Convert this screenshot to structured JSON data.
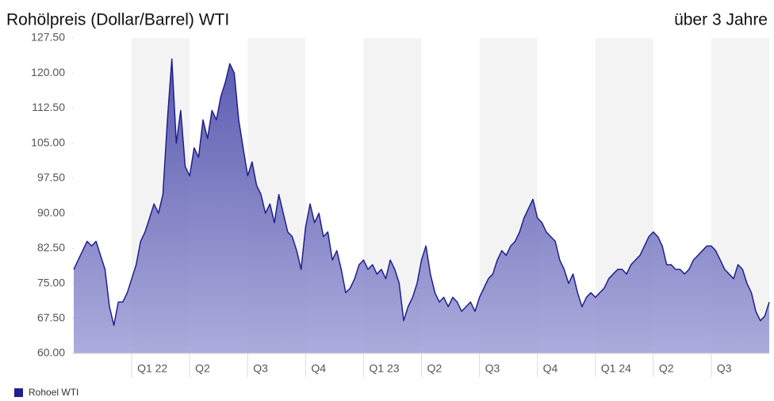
{
  "chart_data": {
    "type": "area",
    "title": "Rohölpreis (Dollar/Barrel) WTI",
    "subtitle": "über 3 Jahre",
    "series": [
      {
        "name": "Rohoel WTI",
        "color": "#1f1f8f",
        "values": [
          78,
          80,
          82,
          84,
          83,
          84,
          81,
          78,
          70,
          66,
          71,
          71,
          73,
          76,
          79,
          84,
          86,
          89,
          92,
          90,
          94,
          110,
          123,
          105,
          112,
          100,
          98,
          104,
          102,
          110,
          106,
          112,
          110,
          115,
          118,
          122,
          120,
          110,
          104,
          98,
          101,
          96,
          94,
          90,
          92,
          88,
          94,
          90,
          86,
          85,
          82,
          78,
          87,
          92,
          88,
          90,
          85,
          86,
          80,
          82,
          78,
          73,
          74,
          76,
          79,
          80,
          78,
          79,
          77,
          78,
          76,
          80,
          78,
          75,
          67,
          70,
          72,
          75,
          80,
          83,
          77,
          73,
          71,
          72,
          70,
          72,
          71,
          69,
          70,
          71,
          69,
          72,
          74,
          76,
          77,
          80,
          82,
          81,
          83,
          84,
          86,
          89,
          91,
          93,
          89,
          88,
          86,
          85,
          84,
          80,
          78,
          75,
          77,
          73,
          70,
          72,
          73,
          72,
          73,
          74,
          76,
          77,
          78,
          78,
          77,
          79,
          80,
          81,
          83,
          85,
          86,
          85,
          83,
          79,
          79,
          78,
          78,
          77,
          78,
          80,
          81,
          82,
          83,
          83,
          82,
          80,
          78,
          77,
          76,
          79,
          78,
          75,
          73,
          69,
          67,
          68,
          71
        ]
      }
    ],
    "xticks": [
      {
        "value": 13,
        "label": "Q1 22"
      },
      {
        "value": 26,
        "label": "Q2"
      },
      {
        "value": 39,
        "label": "Q3"
      },
      {
        "value": 52,
        "label": "Q4"
      },
      {
        "value": 65,
        "label": "Q1 23"
      },
      {
        "value": 78,
        "label": "Q2"
      },
      {
        "value": 91,
        "label": "Q3"
      },
      {
        "value": 104,
        "label": "Q4"
      },
      {
        "value": 117,
        "label": "Q1 24"
      },
      {
        "value": 130,
        "label": "Q2"
      },
      {
        "value": 143,
        "label": "Q3"
      }
    ],
    "ylim": [
      60,
      127.5
    ],
    "yticks": [
      {
        "value": 60,
        "label": "60.00"
      },
      {
        "value": 67.5,
        "label": "67.50"
      },
      {
        "value": 75,
        "label": "75.00"
      },
      {
        "value": 82.5,
        "label": "82.50"
      },
      {
        "value": 90,
        "label": "90.00"
      },
      {
        "value": 97.5,
        "label": "97.50"
      },
      {
        "value": 105,
        "label": "105.00"
      },
      {
        "value": 112.5,
        "label": "112.50"
      },
      {
        "value": 120,
        "label": "120.00"
      },
      {
        "value": 127.5,
        "label": "127.50"
      }
    ]
  }
}
